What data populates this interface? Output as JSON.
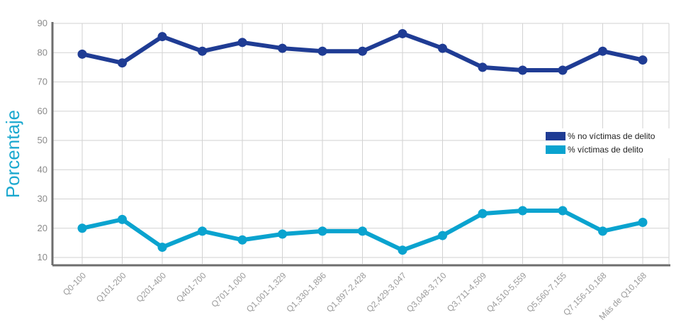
{
  "chart_data": {
    "type": "line",
    "title": "",
    "xlabel": "",
    "ylabel": "Porcentaje",
    "ylim": [
      10,
      90
    ],
    "yticks": [
      10,
      20,
      30,
      40,
      50,
      60,
      70,
      80,
      90
    ],
    "grid": "both",
    "legend_position": "right",
    "categories": [
      "Q0-100",
      "Q101-200",
      "Q201-400",
      "Q401-700",
      "Q701-1,000",
      "Q1,001-1,329",
      "Q1,330-1,896",
      "Q1,897-2,428",
      "Q2,429-3,047",
      "Q3,048-3,710",
      "Q3,711-4,509",
      "Q4,510-5,559",
      "Q5,560-7,155",
      "Q7,156-10,168",
      "Más de Q10,168"
    ],
    "series": [
      {
        "name": "% no víctimas de delito",
        "color": "#1f3c94",
        "values": [
          79.5,
          76.5,
          85.5,
          80.5,
          83.5,
          81.5,
          80.5,
          80.5,
          86.5,
          81.5,
          75,
          74,
          74,
          80.5,
          77.5
        ]
      },
      {
        "name": "% víctimas de delito",
        "color": "#0aa3cf",
        "values": [
          20,
          23,
          13.5,
          19,
          16,
          18,
          19,
          19,
          12.5,
          17.5,
          25,
          26,
          26,
          19,
          22
        ]
      }
    ]
  }
}
